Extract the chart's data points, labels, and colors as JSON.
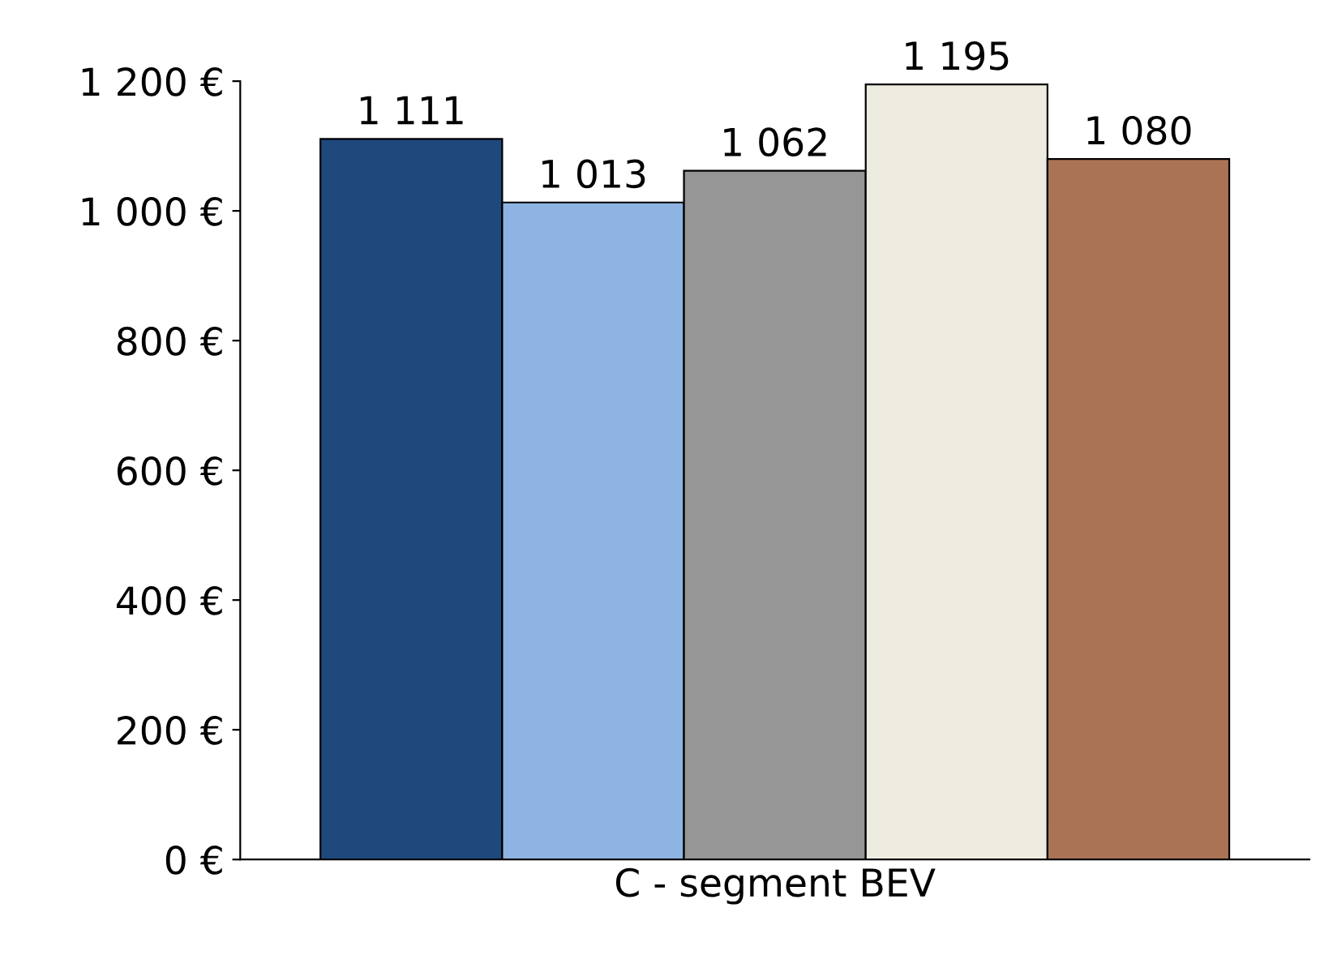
{
  "chart_data": {
    "type": "bar",
    "categories": [
      "C - segment BEV"
    ],
    "series": [
      {
        "color": "#1f497d",
        "values": [
          1111
        ],
        "value_labels": [
          "1 111"
        ]
      },
      {
        "color": "#8eb4e3",
        "values": [
          1013
        ],
        "value_labels": [
          "1 013"
        ]
      },
      {
        "color": "#969696",
        "values": [
          1062
        ],
        "value_labels": [
          "1 062"
        ]
      },
      {
        "color": "#eeece1",
        "values": [
          1195
        ],
        "value_labels": [
          "1 195"
        ]
      },
      {
        "color": "#ab7355",
        "values": [
          1080
        ],
        "value_labels": [
          "1 080"
        ]
      }
    ],
    "ylim": [
      0,
      1200
    ],
    "yticks": [
      {
        "value": 0,
        "label": "0 €"
      },
      {
        "value": 200,
        "label": "200 €"
      },
      {
        "value": 400,
        "label": "400 €"
      },
      {
        "value": 600,
        "label": "600 €"
      },
      {
        "value": 800,
        "label": "800 €"
      },
      {
        "value": 1000,
        "label": "1 000 €"
      },
      {
        "value": 1200,
        "label": "1 200 €"
      }
    ],
    "grid": false
  }
}
